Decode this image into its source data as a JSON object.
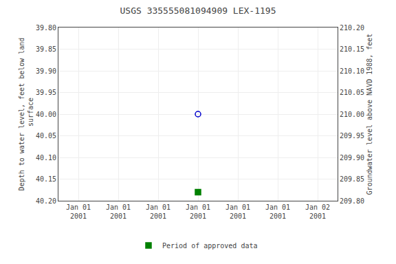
{
  "chart_data": {
    "type": "scatter",
    "title": "USGS 335555081094909 LEX-1195",
    "y_label": "Depth to water level, feet below land\n surface",
    "y2_label": "Groundwater level above NAVD 1988, feet",
    "categories": [
      "Jan 01\n2001",
      "Jan 01\n2001",
      "Jan 01\n2001",
      "Jan 01\n2001",
      "Jan 01\n2001",
      "Jan 01\n2001",
      "Jan 02\n2001"
    ],
    "series": [
      {
        "values": [
          null,
          null,
          null,
          40.0,
          null,
          null,
          null
        ],
        "color": "#0000cc",
        "marker": "circle-open"
      },
      {
        "name": "Period of approved data",
        "values": [
          null,
          null,
          null,
          40.18,
          null,
          null,
          null
        ],
        "color": "#008000",
        "marker": "square"
      }
    ],
    "ylim": [
      40.2,
      39.8
    ],
    "yticks": [
      {
        "value": 39.8,
        "label": "39.80"
      },
      {
        "value": 39.85,
        "label": "39.85"
      },
      {
        "value": 39.9,
        "label": "39.90"
      },
      {
        "value": 39.95,
        "label": "39.95"
      },
      {
        "value": 40.0,
        "label": "40.00"
      },
      {
        "value": 40.05,
        "label": "40.05"
      },
      {
        "value": 40.1,
        "label": "40.10"
      },
      {
        "value": 40.15,
        "label": "40.15"
      },
      {
        "value": 40.2,
        "label": "40.20"
      }
    ],
    "y2lim": [
      209.8,
      210.2
    ],
    "y2ticks": [
      {
        "value": 209.8,
        "label": "209.80"
      },
      {
        "value": 209.85,
        "label": "209.85"
      },
      {
        "value": 209.9,
        "label": "209.90"
      },
      {
        "value": 209.95,
        "label": "209.95"
      },
      {
        "value": 210.0,
        "label": "210.00"
      },
      {
        "value": 210.05,
        "label": "210.05"
      },
      {
        "value": 210.1,
        "label": "210.10"
      },
      {
        "value": 210.15,
        "label": "210.15"
      },
      {
        "value": 210.2,
        "label": "210.20"
      }
    ],
    "grid": true,
    "legend": "bottom"
  }
}
